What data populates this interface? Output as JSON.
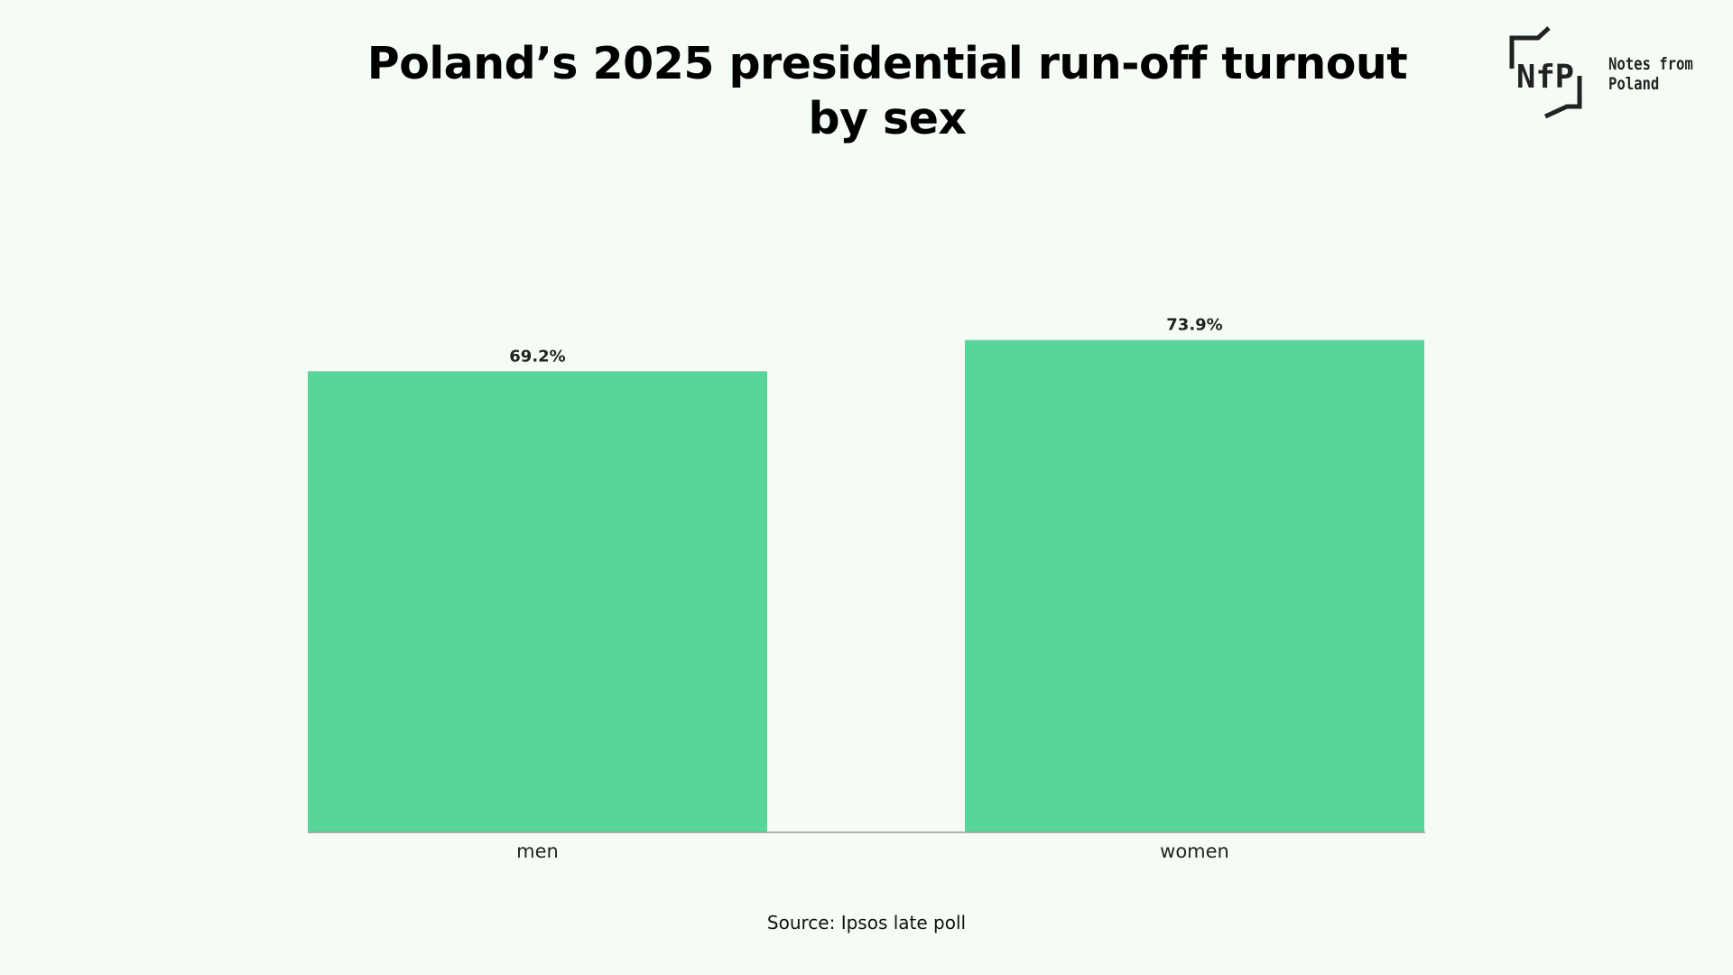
{
  "title_line1": "Poland’s 2025 presidential run-off turnout",
  "title_line2": "by sex",
  "logo": {
    "mark": "NfP",
    "text_line1": "Notes from",
    "text_line2": "Poland"
  },
  "source": "Source: Ipsos late  poll",
  "colors": {
    "bar": "#58d69a",
    "background": "#f5fcf5",
    "axis": "#999999"
  },
  "chart_data": {
    "type": "bar",
    "categories": [
      "men",
      "women"
    ],
    "values": [
      69.2,
      73.9
    ],
    "value_labels": [
      "69.2%",
      "73.9%"
    ],
    "title": "Poland’s 2025 presidential run-off turnout by sex",
    "xlabel": "",
    "ylabel": "",
    "ylim": [
      0,
      76
    ],
    "grid": false,
    "legend": "none"
  }
}
